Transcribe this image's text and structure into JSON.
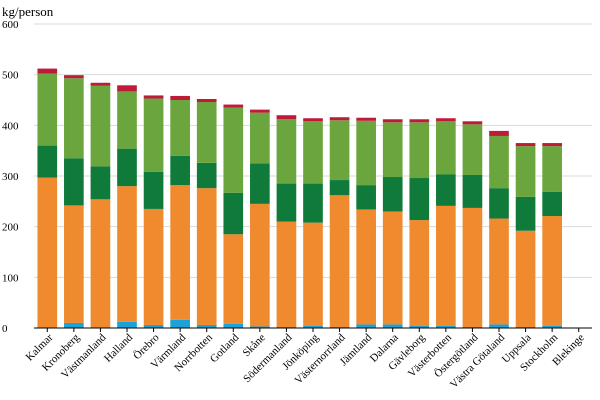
{
  "chart_data": {
    "type": "bar",
    "stacked": true,
    "ylabel": "kg/person",
    "ylim": [
      0,
      600
    ],
    "yticks": [
      0,
      100,
      200,
      300,
      400,
      500,
      600
    ],
    "grid": true,
    "legend": "none",
    "categories": [
      "Kalmar",
      "Kronoberg",
      "Västmanland",
      "Halland",
      "Örebro",
      "Värmland",
      "Norrbotten",
      "Gotland",
      "Skåne",
      "Södermanland",
      "Jönköping",
      "Västernorrland",
      "Jämtland",
      "Dalarna",
      "Gävleborg",
      "Västerbotten",
      "Östergötland",
      "Västra Götaland",
      "Uppsala",
      "Stockholm",
      "Blekinge"
    ],
    "series": [
      {
        "color": "#1ba3d9",
        "values": [
          0,
          10,
          0,
          12,
          6,
          16,
          6,
          8,
          3,
          2,
          4,
          2,
          7,
          7,
          4,
          4,
          2,
          7,
          2,
          4,
          0
        ]
      },
      {
        "color": "#ef8a2f",
        "values": [
          297,
          232,
          254,
          268,
          229,
          266,
          270,
          177,
          242,
          208,
          204,
          260,
          227,
          223,
          209,
          237,
          235,
          209,
          190,
          217,
          0
        ]
      },
      {
        "color": "#0f7a3a",
        "values": [
          63,
          93,
          65,
          74,
          73,
          58,
          50,
          82,
          80,
          75,
          77,
          30,
          48,
          68,
          83,
          62,
          65,
          60,
          67,
          48,
          0
        ]
      },
      {
        "color": "#6ba53d",
        "values": [
          142,
          158,
          159,
          113,
          145,
          110,
          120,
          168,
          100,
          127,
          123,
          118,
          127,
          108,
          110,
          105,
          100,
          103,
          100,
          90,
          0
        ]
      },
      {
        "color": "#c01a3b",
        "values": [
          10,
          6,
          6,
          12,
          6,
          8,
          6,
          6,
          6,
          8,
          6,
          6,
          6,
          6,
          6,
          6,
          6,
          10,
          6,
          6,
          0
        ]
      }
    ]
  }
}
